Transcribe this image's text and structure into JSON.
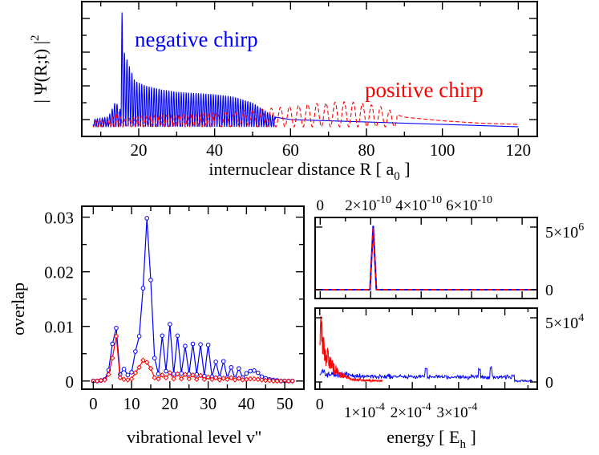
{
  "chart_data": [
    {
      "id": "top",
      "type": "line",
      "xlabel_main": "internuclear distance R [ a",
      "xlabel_sub": "0",
      "xlabel_close": " ]",
      "ylabel": "| Ψ(R;t) |",
      "ylabel_sup": "2",
      "xlim": [
        5,
        125
      ],
      "xticks": [
        "20",
        "40",
        "60",
        "80",
        "100",
        "120"
      ],
      "annotations": [
        {
          "text": "negative chirp",
          "color": "#0000ff"
        },
        {
          "text": "positive chirp",
          "color": "#ff0000"
        }
      ],
      "series": [
        {
          "color": "#0000ff",
          "style": "solid",
          "envelope_x": [
            8,
            12,
            14,
            15,
            15.6,
            16.2,
            17,
            19,
            22,
            26,
            30,
            35,
            40,
            45,
            50,
            53,
            56,
            60,
            70,
            80,
            90,
            100,
            110,
            120
          ],
          "envelope_y": [
            0.06,
            0.08,
            0.22,
            0.12,
            0.95,
            0.62,
            0.55,
            0.38,
            0.34,
            0.31,
            0.29,
            0.28,
            0.27,
            0.25,
            0.2,
            0.14,
            0.08,
            0.06,
            0.05,
            0.04,
            0.03,
            0.02,
            0.01,
            0.0
          ]
        },
        {
          "color": "#ff0000",
          "style": "dashed",
          "envelope_x": [
            8,
            12,
            14,
            16,
            20,
            30,
            40,
            50,
            60,
            65,
            70,
            75,
            80,
            85,
            88,
            90,
            100,
            110,
            120
          ],
          "envelope_y": [
            0.05,
            0.06,
            0.12,
            0.06,
            0.09,
            0.1,
            0.12,
            0.14,
            0.17,
            0.19,
            0.2,
            0.21,
            0.19,
            0.16,
            0.1,
            0.08,
            0.05,
            0.03,
            0.02
          ]
        }
      ]
    },
    {
      "id": "overlap",
      "type": "line",
      "xlabel": "vibrational level v''",
      "ylabel": "overlap",
      "xlim": [
        -3,
        55
      ],
      "ylim": [
        -0.0015,
        0.032
      ],
      "xticks": [
        "0",
        "10",
        "20",
        "30",
        "40",
        "50"
      ],
      "yticks": [
        "0",
        "0.01",
        "0.02",
        "0.03"
      ],
      "series": [
        {
          "color": "#0000ff",
          "marker": "circle",
          "values": [
            0,
            0,
            0.0001,
            0.0003,
            0.002,
            0.0068,
            0.0097,
            0.0012,
            0.0022,
            0.0011,
            0.0016,
            0.0054,
            0.0082,
            0.017,
            0.0298,
            0.0185,
            0.0042,
            0.0013,
            0.0083,
            0.0018,
            0.0104,
            0.0013,
            0.0083,
            0.0014,
            0.0064,
            0.0013,
            0.0068,
            0.0012,
            0.0067,
            0.0009,
            0.0066,
            0.0008,
            0.0035,
            0.0007,
            0.0036,
            0.0006,
            0.0025,
            0.0005,
            0.0023,
            0.0006,
            0.0014,
            0.0018,
            0.0019,
            0.0015,
            0.0008,
            0.0005,
            0.0003,
            0.0002,
            0.0001,
            0,
            0,
            0,
            0
          ]
        },
        {
          "color": "#ff0000",
          "marker": "diamond",
          "values": [
            0,
            0,
            0.0001,
            0.0002,
            0.0012,
            0.0042,
            0.0082,
            0.0006,
            0.0003,
            0.0002,
            0.0004,
            0.0015,
            0.0025,
            0.0038,
            0.0034,
            0.0023,
            0.0006,
            0.0004,
            0.0011,
            0.0006,
            0.0015,
            0.0004,
            0.0013,
            0.0004,
            0.0012,
            0.0004,
            0.0011,
            0.0003,
            0.001,
            0.0003,
            0.0007,
            0.0003,
            0.0006,
            0.0002,
            0.0005,
            0.0003,
            0.0006,
            0.0002,
            0.0005,
            0.0002,
            0.0003,
            0.0004,
            0.0004,
            0.0003,
            0.0002,
            0.0001,
            0.0001,
            0,
            0,
            0,
            0,
            0,
            0
          ]
        }
      ]
    },
    {
      "id": "spectrum-top",
      "type": "line",
      "xlim": [
        -2e-11,
        8.6e-10
      ],
      "xticks_top": [
        "0",
        "2×10",
        "4×10",
        "6×10"
      ],
      "xticks_top_exp": [
        "",
        "-10",
        "-10",
        "-10"
      ],
      "yticks_right": [
        "0",
        "5×10"
      ],
      "yticks_right_exp": [
        "",
        "6"
      ],
      "series": [
        {
          "color": "#0000ff",
          "style": "solid",
          "peak_x": 2.1e-10,
          "peak_y": 5100000.0
        },
        {
          "color": "#ff0000",
          "style": "dashed",
          "peak_x": 2.1e-10,
          "peak_y": 4900000.0
        }
      ]
    },
    {
      "id": "spectrum-bottom",
      "type": "line",
      "xlabel": "energy [ E",
      "xlabel_sub": "h",
      "xlabel_close": " ]",
      "xlim": [
        -1e-05,
        0.00047
      ],
      "xticks": [
        "1×10",
        "2×10",
        "3×10"
      ],
      "xticks_exp": [
        "-4",
        "-4",
        "-4"
      ],
      "yticks_right": [
        "0",
        "5×10"
      ],
      "yticks_right_exp": [
        "",
        "4"
      ],
      "series": [
        {
          "color": "#0000ff",
          "style": "solid"
        },
        {
          "color": "#ff0000",
          "style": "solid",
          "peak_y": 58000
        }
      ]
    }
  ]
}
